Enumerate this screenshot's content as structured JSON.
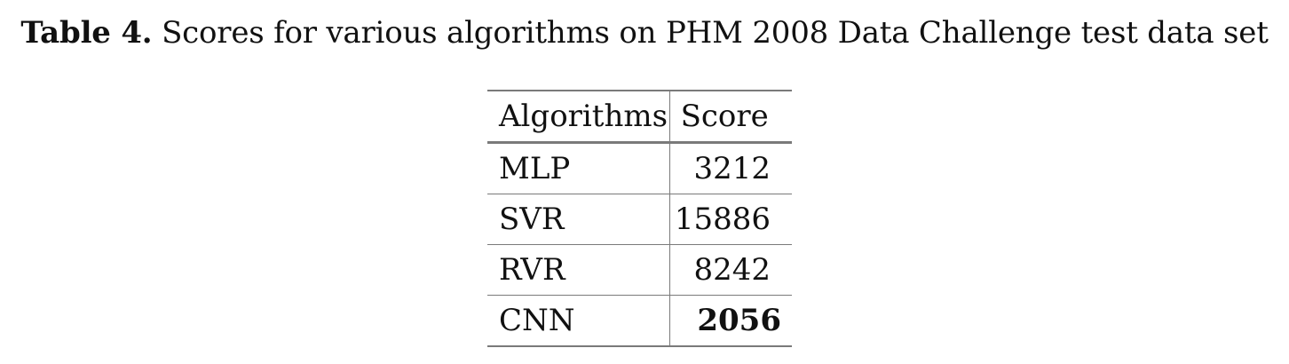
{
  "caption": {
    "label": "Table 4.",
    "text": "Scores for various algorithms on PHM 2008 Data Challenge test data set"
  },
  "table": {
    "headers": [
      "Algorithms",
      "Score"
    ],
    "rows": [
      {
        "algorithm": "MLP",
        "score": "3212"
      },
      {
        "algorithm": "SVR",
        "score": "15886"
      },
      {
        "algorithm": "RVR",
        "score": "8242"
      },
      {
        "algorithm": "CNN",
        "score": "2056",
        "bold": true
      }
    ]
  }
}
